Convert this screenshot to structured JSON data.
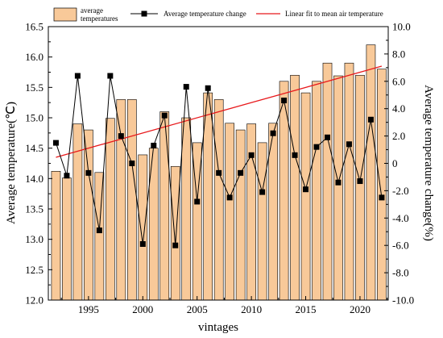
{
  "chart_data": {
    "type": "bar+line",
    "x": [
      1992,
      1993,
      1994,
      1995,
      1996,
      1997,
      1998,
      1999,
      2000,
      2001,
      2002,
      2003,
      2004,
      2005,
      2006,
      2007,
      2008,
      2009,
      2010,
      2011,
      2012,
      2013,
      2014,
      2015,
      2016,
      2017,
      2018,
      2019,
      2020,
      2021,
      2022
    ],
    "x_ticks": [
      "1995",
      "2000",
      "2005",
      "2010",
      "2015",
      "2020"
    ],
    "x_tick_values": [
      1995,
      2000,
      2005,
      2010,
      2015,
      2020
    ],
    "xlabel": "vintages",
    "ylabel_left": "Average temperature(℃)",
    "ylabel_right": "Average temperature change(%)",
    "ylim_left": [
      12.0,
      16.5
    ],
    "ylim_right": [
      -10.0,
      10.0
    ],
    "yticks_left": [
      "12.0",
      "12.5",
      "13.0",
      "13.5",
      "14.0",
      "14.5",
      "15.0",
      "15.5",
      "16.0",
      "16.5"
    ],
    "yticks_right": [
      "-10.0",
      "-8.0",
      "-6.0",
      "-4.0",
      "-2.0",
      "0",
      "2.0",
      "4.0",
      "6.0",
      "8.0",
      "10.0"
    ],
    "series": [
      {
        "name": "average temperatures",
        "kind": "bar",
        "axis": "left",
        "color": "#f8c999",
        "values": [
          14.12,
          14.01,
          14.9,
          14.8,
          14.1,
          14.99,
          15.3,
          15.3,
          14.39,
          14.5,
          15.1,
          14.2,
          15.0,
          14.59,
          15.41,
          15.3,
          14.91,
          14.8,
          14.9,
          14.59,
          14.91,
          15.6,
          15.7,
          15.41,
          15.6,
          15.9,
          15.69,
          15.9,
          15.7,
          16.2,
          15.8
        ]
      },
      {
        "name": "Average temperature change",
        "kind": "line",
        "axis": "right",
        "color": "#000000",
        "values": [
          1.5,
          -0.9,
          6.4,
          -0.7,
          -4.9,
          6.4,
          2.0,
          0.0,
          -5.9,
          1.3,
          3.5,
          -6.0,
          5.6,
          -2.8,
          5.5,
          -0.7,
          -2.5,
          -0.7,
          0.6,
          -2.1,
          2.2,
          4.6,
          0.6,
          -1.9,
          1.2,
          1.9,
          -1.4,
          1.4,
          -1.3,
          3.2,
          -2.5
        ]
      },
      {
        "name": "Linear fit to mean air temperature",
        "kind": "fit",
        "axis": "left",
        "color": "#e8191c",
        "x_range": [
          1992,
          2022
        ],
        "y_range": [
          14.35,
          15.85
        ]
      }
    ],
    "legend": {
      "bar_label_line1": "average",
      "bar_label_line2": "temperatures",
      "line_label": "Average temperature change",
      "fit_label": "Linear fit to mean air temperature",
      "placement": "top"
    }
  }
}
